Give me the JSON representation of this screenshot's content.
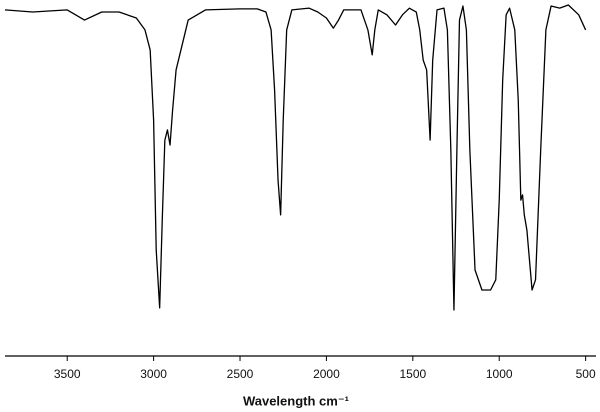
{
  "chart_data": {
    "type": "line",
    "xlabel": "Wavelength cm⁻¹",
    "x": [
      3860,
      3700,
      3500,
      3400,
      3300,
      3200,
      3100,
      3050,
      3020,
      3000,
      2985,
      2965,
      2950,
      2935,
      2920,
      2905,
      2890,
      2870,
      2800,
      2700,
      2500,
      2400,
      2350,
      2320,
      2300,
      2280,
      2265,
      2250,
      2230,
      2200,
      2100,
      2050,
      2000,
      1960,
      1930,
      1900,
      1800,
      1760,
      1735,
      1720,
      1700,
      1650,
      1600,
      1560,
      1520,
      1480,
      1460,
      1440,
      1420,
      1400,
      1385,
      1360,
      1320,
      1300,
      1280,
      1262,
      1245,
      1230,
      1210,
      1190,
      1170,
      1140,
      1100,
      1050,
      1020,
      1000,
      980,
      960,
      940,
      910,
      890,
      875,
      865,
      855,
      840,
      810,
      790,
      760,
      730,
      700,
      650,
      600,
      540,
      500
    ],
    "values": [
      98.6,
      98,
      98.6,
      95.7,
      98,
      98,
      96.3,
      92.9,
      87.2,
      67.2,
      30.2,
      13.7,
      38.7,
      61.5,
      64.4,
      60.1,
      70.1,
      81.5,
      95.7,
      98.6,
      98.9,
      98.9,
      98,
      92.9,
      75.8,
      50.1,
      40.2,
      67.2,
      92.9,
      98.6,
      99.1,
      98,
      96.3,
      93.4,
      95.7,
      98.6,
      98.6,
      92.9,
      85.8,
      92.9,
      98.6,
      97.2,
      94.3,
      97.2,
      99.1,
      98,
      92.9,
      84.3,
      81.5,
      61.5,
      84.3,
      98.6,
      99.1,
      92.9,
      58.7,
      13.1,
      58.7,
      95.7,
      99.7,
      92.9,
      58.7,
      24.5,
      18.8,
      18.8,
      21.7,
      44.4,
      78.6,
      97.2,
      99.1,
      92.9,
      72.9,
      44.4,
      45.9,
      40.2,
      35.9,
      18.8,
      21.7,
      58.7,
      92.9,
      99.7,
      99.1,
      100,
      97.2,
      92.9
    ],
    "color": "#000000",
    "xlim": [
      3860,
      440
    ],
    "xticks": [
      3500,
      3000,
      2500,
      2000,
      1500,
      1000,
      500
    ],
    "ylim": [
      0,
      100
    ]
  }
}
